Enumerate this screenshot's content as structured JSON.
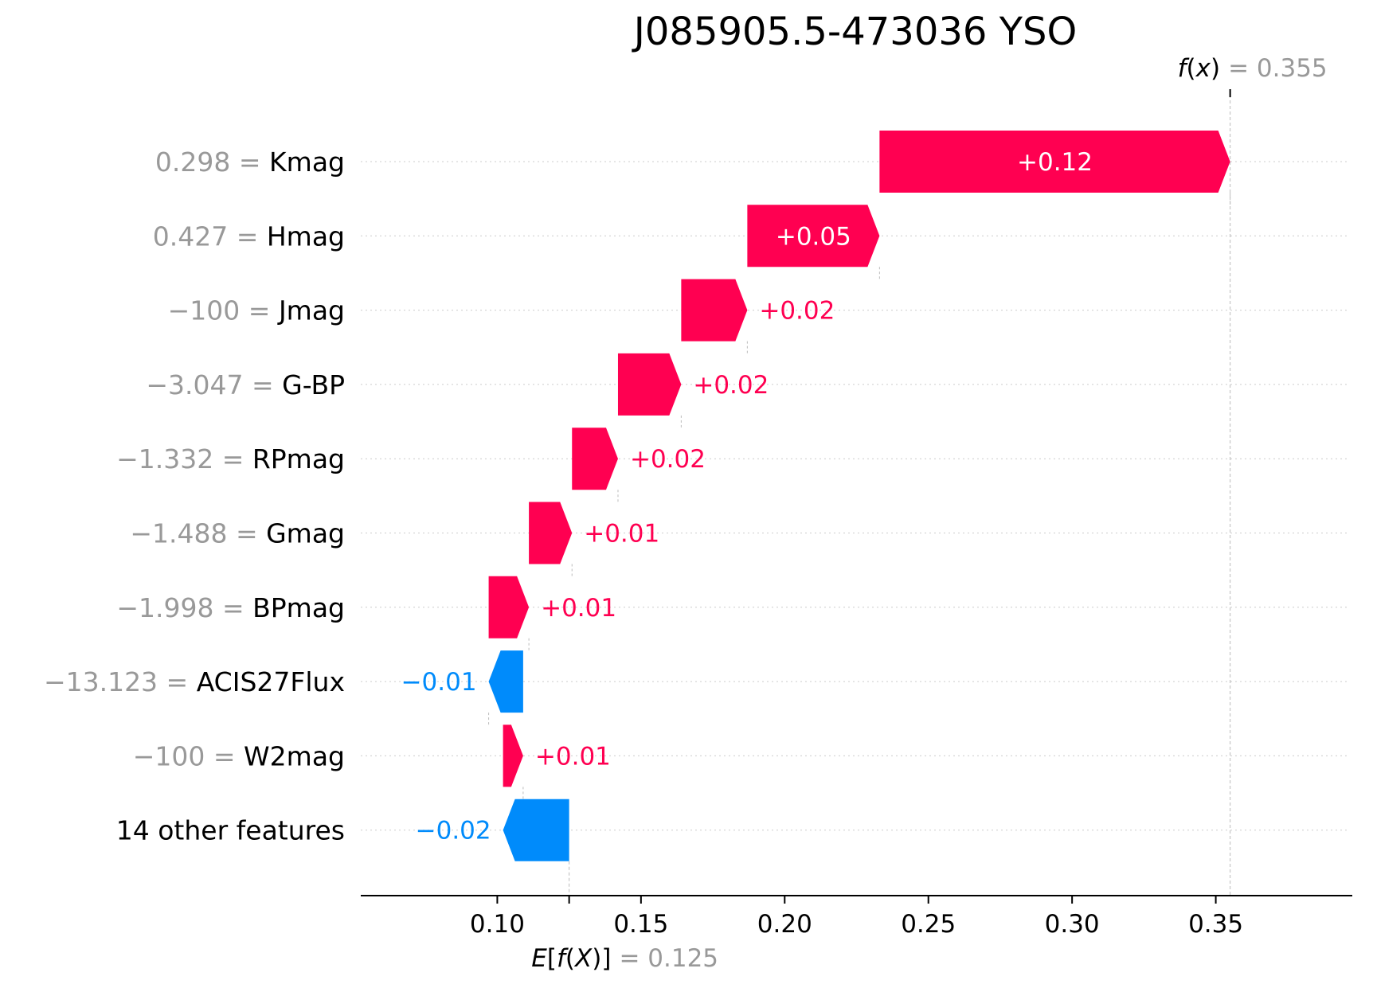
{
  "chart_data": {
    "type": "waterfall",
    "title": "J085905.5-473036 YSO",
    "base_value": 0.125,
    "base_label_key": "E[f(X)]",
    "base_label_value": "= 0.125",
    "output_value": 0.355,
    "output_label_key": "f(x)",
    "output_label_value": "= 0.355",
    "xlim": [
      0.0525,
      0.3975
    ],
    "xticks": [
      0.1,
      0.15,
      0.2,
      0.25,
      0.3,
      0.35
    ],
    "xtick_labels": [
      "0.10",
      "0.15",
      "0.20",
      "0.25",
      "0.30",
      "0.35"
    ],
    "features": [
      {
        "value_text": "0.298",
        "name": "Kmag",
        "start": 0.233,
        "end": 0.355,
        "label": "+0.12"
      },
      {
        "value_text": "0.427",
        "name": "Hmag",
        "start": 0.187,
        "end": 0.233,
        "label": "+0.05"
      },
      {
        "value_text": "−100",
        "name": "Jmag",
        "start": 0.164,
        "end": 0.187,
        "label": "+0.02"
      },
      {
        "value_text": "−3.047",
        "name": "G-BP",
        "start": 0.142,
        "end": 0.164,
        "label": "+0.02"
      },
      {
        "value_text": "−1.332",
        "name": "RPmag",
        "start": 0.126,
        "end": 0.142,
        "label": "+0.02"
      },
      {
        "value_text": "−1.488",
        "name": "Gmag",
        "start": 0.111,
        "end": 0.126,
        "label": "+0.01"
      },
      {
        "value_text": "−1.998",
        "name": "BPmag",
        "start": 0.097,
        "end": 0.111,
        "label": "+0.01"
      },
      {
        "value_text": "−13.123",
        "name": "ACIS27Flux",
        "start": 0.109,
        "end": 0.097,
        "label": "−0.01"
      },
      {
        "value_text": "−100",
        "name": "W2mag",
        "start": 0.102,
        "end": 0.109,
        "label": "+0.01"
      },
      {
        "value_text": "",
        "name": "14 other features",
        "start": 0.125,
        "end": 0.102,
        "label": "−0.02"
      }
    ],
    "colors": {
      "positive": "#ff0051",
      "negative": "#008bfb",
      "bar_label_inside": "#ffffff",
      "value_gray": "#999999",
      "grid": "#cccccc",
      "axis": "#000000"
    }
  }
}
